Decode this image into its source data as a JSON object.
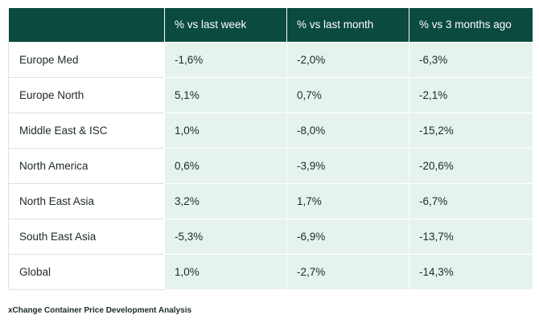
{
  "chart_data": {
    "type": "table",
    "columns": [
      "",
      "% vs last week",
      "% vs last month",
      "% vs 3 months ago"
    ],
    "rows": [
      {
        "region": "Europe Med",
        "values": [
          "-1,6%",
          "-2,0%",
          "-6,3%"
        ]
      },
      {
        "region": "Europe North",
        "values": [
          "5,1%",
          "0,7%",
          "-2,1%"
        ]
      },
      {
        "region": "Middle East & ISC",
        "values": [
          "1,0%",
          "-8,0%",
          "-15,2%"
        ]
      },
      {
        "region": "North America",
        "values": [
          "0,6%",
          "-3,9%",
          "-20,6%"
        ]
      },
      {
        "region": "North East Asia",
        "values": [
          "3,2%",
          "1,7%",
          "-6,7%"
        ]
      },
      {
        "region": "South East Asia",
        "values": [
          "-5,3%",
          "-6,9%",
          "-13,7%"
        ]
      },
      {
        "region": "Global",
        "values": [
          "1,0%",
          "-2,7%",
          "-14,3%"
        ]
      }
    ],
    "caption": "xChange Container Price Development Analysis"
  },
  "colors": {
    "header_background": "#0b4a3f",
    "header_text": "#ffffff",
    "value_cell_background": "#e6f3ec",
    "label_cell_background": "#ffffff"
  }
}
